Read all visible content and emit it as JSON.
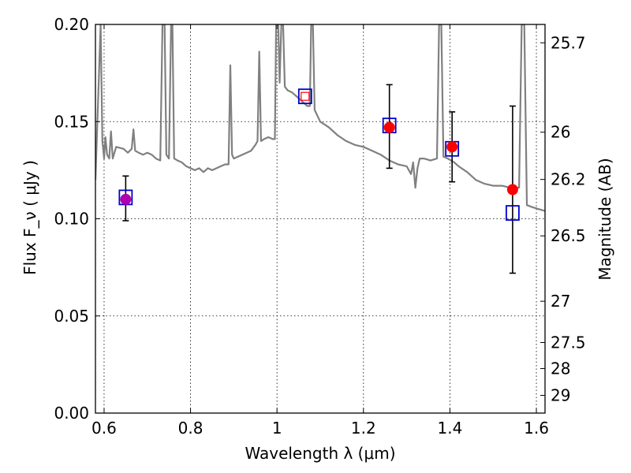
{
  "chart_data": {
    "type": "scatter",
    "title": "",
    "xlabel": "Wavelength  λ (μm)",
    "ylabel": "Flux  F_ν  ( μJy )",
    "ylabel_right": "Magnitude (AB)",
    "xlim": [
      0.58,
      1.62
    ],
    "ylim": [
      0.0,
      0.2
    ],
    "x_ticks": [
      0.6,
      0.8,
      1.0,
      1.2,
      1.4,
      1.6
    ],
    "x_tick_labels": [
      "0.6",
      "0.8",
      "1",
      "1.2",
      "1.4",
      "1.6"
    ],
    "y_ticks": [
      0.0,
      0.05,
      0.1,
      0.15,
      0.2
    ],
    "y_tick_labels": [
      "0.00",
      "0.05",
      "0.10",
      "0.15",
      "0.20"
    ],
    "right_ticks": [
      {
        "label": "25.7",
        "mag": 25.7
      },
      {
        "label": "26",
        "mag": 26.0
      },
      {
        "label": "26.2",
        "mag": 26.2
      },
      {
        "label": "26.5",
        "mag": 26.5
      },
      {
        "label": "27",
        "mag": 27.0
      },
      {
        "label": "27.5",
        "mag": 27.5
      },
      {
        "label": "28",
        "mag": 28.0
      },
      {
        "label": "29",
        "mag": 29.0
      }
    ],
    "grid": true,
    "legend": "none",
    "colors": {
      "spectrum": "#808080",
      "observed": "#ff0000",
      "model": "#0000cc",
      "errorbar": "#000000"
    },
    "observed": [
      {
        "x": 0.65,
        "y": 0.11,
        "err_low": 0.099,
        "err_high": 0.122
      },
      {
        "x": 1.26,
        "y": 0.147,
        "err_low": 0.126,
        "err_high": 0.169
      },
      {
        "x": 1.405,
        "y": 0.137,
        "err_low": 0.119,
        "err_high": 0.155
      },
      {
        "x": 1.545,
        "y": 0.115,
        "err_low": 0.072,
        "err_high": 0.158
      }
    ],
    "model_photometry": [
      {
        "x": 0.65,
        "y": 0.111
      },
      {
        "x": 1.065,
        "y": 0.163
      },
      {
        "x": 1.26,
        "y": 0.148
      },
      {
        "x": 1.405,
        "y": 0.136
      },
      {
        "x": 1.545,
        "y": 0.103
      }
    ],
    "model_filled_point": {
      "x": 1.065,
      "y": 0.163
    },
    "spectrum": [
      [
        0.58,
        0.12
      ],
      [
        0.592,
        0.2
      ],
      [
        0.596,
        0.14
      ],
      [
        0.6,
        0.131
      ],
      [
        0.603,
        0.142
      ],
      [
        0.607,
        0.133
      ],
      [
        0.612,
        0.131
      ],
      [
        0.616,
        0.145
      ],
      [
        0.62,
        0.131
      ],
      [
        0.628,
        0.137
      ],
      [
        0.645,
        0.136
      ],
      [
        0.655,
        0.134
      ],
      [
        0.664,
        0.136
      ],
      [
        0.668,
        0.146
      ],
      [
        0.672,
        0.135
      ],
      [
        0.68,
        0.134
      ],
      [
        0.69,
        0.133
      ],
      [
        0.7,
        0.134
      ],
      [
        0.71,
        0.133
      ],
      [
        0.72,
        0.131
      ],
      [
        0.73,
        0.13
      ],
      [
        0.735,
        0.2
      ],
      [
        0.74,
        0.2
      ],
      [
        0.744,
        0.133
      ],
      [
        0.75,
        0.131
      ],
      [
        0.755,
        0.2
      ],
      [
        0.758,
        0.2
      ],
      [
        0.762,
        0.131
      ],
      [
        0.77,
        0.13
      ],
      [
        0.78,
        0.129
      ],
      [
        0.79,
        0.127
      ],
      [
        0.8,
        0.126
      ],
      [
        0.81,
        0.125
      ],
      [
        0.82,
        0.126
      ],
      [
        0.83,
        0.124
      ],
      [
        0.84,
        0.126
      ],
      [
        0.85,
        0.125
      ],
      [
        0.86,
        0.126
      ],
      [
        0.87,
        0.127
      ],
      [
        0.88,
        0.128
      ],
      [
        0.888,
        0.128
      ],
      [
        0.892,
        0.179
      ],
      [
        0.896,
        0.133
      ],
      [
        0.9,
        0.131
      ],
      [
        0.91,
        0.132
      ],
      [
        0.92,
        0.133
      ],
      [
        0.93,
        0.134
      ],
      [
        0.94,
        0.135
      ],
      [
        0.95,
        0.138
      ],
      [
        0.955,
        0.14
      ],
      [
        0.959,
        0.186
      ],
      [
        0.963,
        0.14
      ],
      [
        0.97,
        0.141
      ],
      [
        0.98,
        0.142
      ],
      [
        0.99,
        0.141
      ],
      [
        0.995,
        0.141
      ],
      [
        0.998,
        0.2
      ],
      [
        1.003,
        0.2
      ],
      [
        1.006,
        0.17
      ],
      [
        1.01,
        0.2
      ],
      [
        1.014,
        0.2
      ],
      [
        1.018,
        0.168
      ],
      [
        1.025,
        0.166
      ],
      [
        1.035,
        0.165
      ],
      [
        1.045,
        0.163
      ],
      [
        1.055,
        0.161
      ],
      [
        1.06,
        0.16
      ],
      [
        1.07,
        0.158
      ],
      [
        1.076,
        0.158
      ],
      [
        1.079,
        0.2
      ],
      [
        1.083,
        0.2
      ],
      [
        1.087,
        0.156
      ],
      [
        1.1,
        0.15
      ],
      [
        1.12,
        0.147
      ],
      [
        1.14,
        0.143
      ],
      [
        1.16,
        0.14
      ],
      [
        1.18,
        0.138
      ],
      [
        1.2,
        0.137
      ],
      [
        1.22,
        0.135
      ],
      [
        1.24,
        0.133
      ],
      [
        1.26,
        0.13
      ],
      [
        1.28,
        0.128
      ],
      [
        1.3,
        0.127
      ],
      [
        1.31,
        0.123
      ],
      [
        1.315,
        0.129
      ],
      [
        1.32,
        0.116
      ],
      [
        1.325,
        0.126
      ],
      [
        1.33,
        0.131
      ],
      [
        1.34,
        0.131
      ],
      [
        1.355,
        0.13
      ],
      [
        1.37,
        0.131
      ],
      [
        1.375,
        0.2
      ],
      [
        1.38,
        0.2
      ],
      [
        1.385,
        0.132
      ],
      [
        1.395,
        0.131
      ],
      [
        1.41,
        0.129
      ],
      [
        1.42,
        0.127
      ],
      [
        1.44,
        0.124
      ],
      [
        1.46,
        0.12
      ],
      [
        1.48,
        0.118
      ],
      [
        1.5,
        0.117
      ],
      [
        1.52,
        0.117
      ],
      [
        1.54,
        0.116
      ],
      [
        1.55,
        0.116
      ],
      [
        1.56,
        0.116
      ],
      [
        1.566,
        0.2
      ],
      [
        1.572,
        0.2
      ],
      [
        1.578,
        0.107
      ],
      [
        1.59,
        0.106
      ],
      [
        1.605,
        0.105
      ],
      [
        1.62,
        0.104
      ]
    ]
  }
}
